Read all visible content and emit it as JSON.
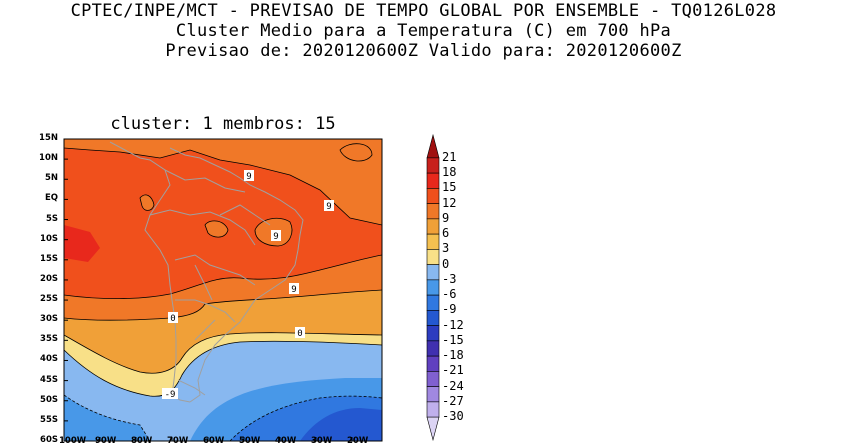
{
  "header": {
    "line1": "CPTEC/INPE/MCT - PREVISAO DE TEMPO GLOBAL POR ENSEMBLE - TQ0126L028",
    "line2": "Cluster Medio para a Temperatura (C) em 700 hPa",
    "line3": "Previsao de: 2020120600Z   Valido para: 2020120600Z"
  },
  "panel": {
    "subtitle": "cluster: 1  membros: 15",
    "lat_labels": [
      "15N",
      "10N",
      "5N",
      "EQ",
      "5S",
      "10S",
      "15S",
      "20S",
      "25S",
      "30S",
      "35S",
      "40S",
      "45S",
      "50S",
      "55S",
      "60S"
    ],
    "lon_labels": [
      "100W",
      "90W",
      "80W",
      "70W",
      "60W",
      "50W",
      "40W",
      "30W",
      "20W"
    ],
    "contour_labels": [
      "9",
      "9",
      "9",
      "9",
      "0",
      "0",
      "-9"
    ]
  },
  "colorbar": {
    "labels": [
      "21",
      "18",
      "15",
      "12",
      "9",
      "6",
      "3",
      "0",
      "-3",
      "-6",
      "-9",
      "-12",
      "-15",
      "-18",
      "-21",
      "-24",
      "-27",
      "-30"
    ],
    "colors": [
      "#a01010",
      "#c8201c",
      "#e8281c",
      "#f0501c",
      "#f07828",
      "#f0a038",
      "#f4c050",
      "#f8e088",
      "#88b8f0",
      "#4898e8",
      "#3078e0",
      "#2458d0",
      "#2c3cc0",
      "#4030b0",
      "#6040c0",
      "#8060d0",
      "#a088e0",
      "#c0b0ec",
      "#dcd4f4"
    ]
  }
}
